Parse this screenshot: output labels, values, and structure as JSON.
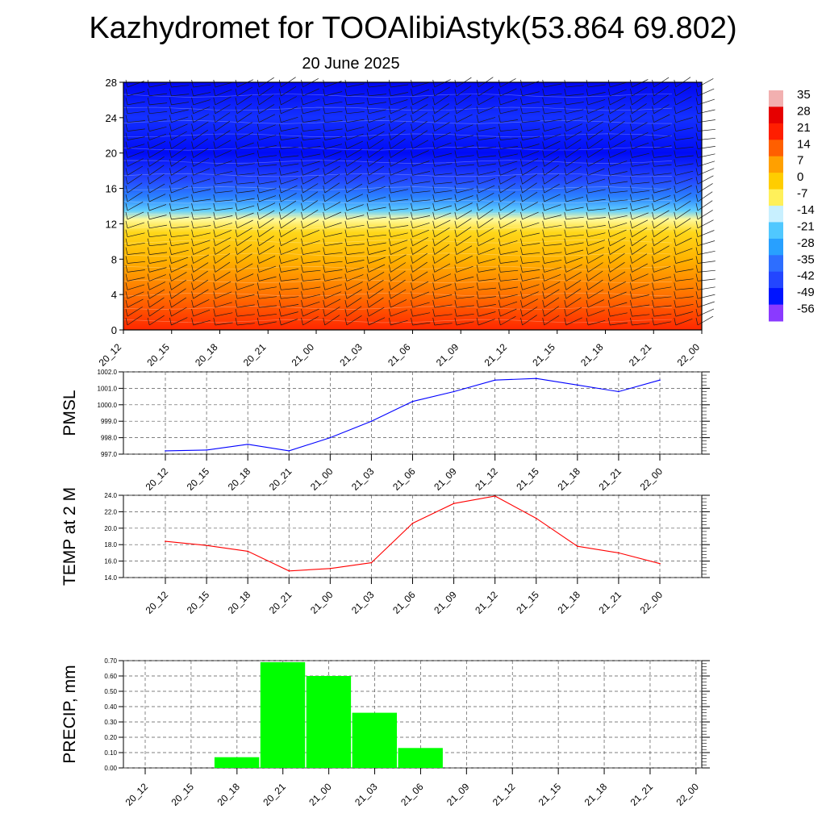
{
  "title": "Kazhydromet for TOOAlibiAstyk(53.864 69.802)",
  "subtitle": "20 June 2025",
  "time_labels": [
    "20_12",
    "20_15",
    "20_18",
    "20_21",
    "21_00",
    "21_03",
    "21_06",
    "21_09",
    "21_12",
    "21_15",
    "21_18",
    "21_21",
    "22_00"
  ],
  "colorbar": {
    "labels": [
      "35",
      "28",
      "21",
      "14",
      "7",
      "0",
      "-7",
      "-14",
      "-21",
      "-28",
      "-35",
      "-42",
      "-49",
      "-56"
    ],
    "colors": [
      "#f2c8c8",
      "#e8a0a0",
      "#d51a1a",
      "#ff0000",
      "#ff6a00",
      "#ffb000",
      "#ffff80",
      "#c8f0ff",
      "#40c8ff",
      "#2090ff",
      "#3a6aff",
      "#1e2aff",
      "#0000ff",
      "#8a3aff"
    ]
  },
  "chart_data": [
    {
      "type": "heatmap",
      "title": "",
      "xlabel": "",
      "ylabel": "",
      "x": [
        "20_12",
        "20_15",
        "20_18",
        "20_21",
        "21_00",
        "21_03",
        "21_06",
        "21_09",
        "21_12",
        "21_15",
        "21_18",
        "21_21",
        "22_00"
      ],
      "ylim": [
        0,
        28
      ],
      "yticks": [
        0,
        4,
        8,
        12,
        16,
        20,
        24,
        28
      ],
      "value_range": [
        -56,
        35
      ],
      "vertical_profile": [
        {
          "level": 0,
          "value": 20
        },
        {
          "level": 4,
          "value": 12
        },
        {
          "level": 8,
          "value": 4
        },
        {
          "level": 11,
          "value": -2
        },
        {
          "level": 12.5,
          "value": -9
        },
        {
          "level": 13.5,
          "value": -20
        },
        {
          "level": 15,
          "value": -32
        },
        {
          "level": 17,
          "value": -42
        },
        {
          "level": 20,
          "value": -52
        },
        {
          "level": 24,
          "value": -45
        },
        {
          "level": 28,
          "value": -54
        }
      ],
      "wind_barbs": true
    },
    {
      "type": "line",
      "ylabel": "PMSL",
      "x": [
        "20_12",
        "20_15",
        "20_18",
        "20_21",
        "21_00",
        "21_03",
        "21_06",
        "21_09",
        "21_12",
        "21_15",
        "21_18",
        "21_21",
        "22_00"
      ],
      "series": [
        {
          "values": [
            997.2,
            997.25,
            997.6,
            997.2,
            998.0,
            999.0,
            1000.2,
            1000.8,
            1001.5,
            1001.6,
            1001.2,
            1000.8,
            1001.5
          ],
          "color": "#0000ff"
        }
      ],
      "ylim": [
        997.0,
        1002.0
      ],
      "yticks": [
        997.0,
        998.0,
        999.0,
        1000.0,
        1001.0,
        1002.0
      ],
      "ytick_labels": [
        "997.0",
        "998.0",
        "999.0",
        "1000.0",
        "1001.0",
        "1002.0"
      ]
    },
    {
      "type": "line",
      "ylabel": "TEMP at 2 M",
      "x": [
        "20_12",
        "20_15",
        "20_18",
        "20_21",
        "21_00",
        "21_03",
        "21_06",
        "21_09",
        "21_12",
        "21_15",
        "21_18",
        "21_21",
        "22_00"
      ],
      "series": [
        {
          "values": [
            18.4,
            17.9,
            17.2,
            14.8,
            15.1,
            15.8,
            20.6,
            23.0,
            23.9,
            21.2,
            17.8,
            17.0,
            15.7
          ],
          "color": "#ff0000"
        }
      ],
      "ylim": [
        14.0,
        24.0
      ],
      "yticks": [
        14.0,
        16.0,
        18.0,
        20.0,
        22.0,
        24.0
      ],
      "ytick_labels": [
        "14.0",
        "16.0",
        "18.0",
        "20.0",
        "22.0",
        "24.0"
      ]
    },
    {
      "type": "bar",
      "ylabel": "PRECIP, mm",
      "categories": [
        "20_12",
        "20_15",
        "20_18",
        "20_21",
        "21_00",
        "21_03",
        "21_06",
        "21_09",
        "21_12",
        "21_15",
        "21_18",
        "21_21",
        "22_00"
      ],
      "values": [
        0,
        0,
        0.07,
        0.69,
        0.6,
        0.36,
        0.13,
        0,
        0,
        0,
        0,
        0,
        0
      ],
      "color": "#00ff00",
      "ylim": [
        0,
        0.7
      ],
      "yticks": [
        0,
        0.1,
        0.2,
        0.3,
        0.4,
        0.5,
        0.6,
        0.7
      ],
      "ytick_labels": [
        "0.00",
        "0.10",
        "0.20",
        "0.30",
        "0.40",
        "0.50",
        "0.60",
        "0.70"
      ]
    }
  ]
}
